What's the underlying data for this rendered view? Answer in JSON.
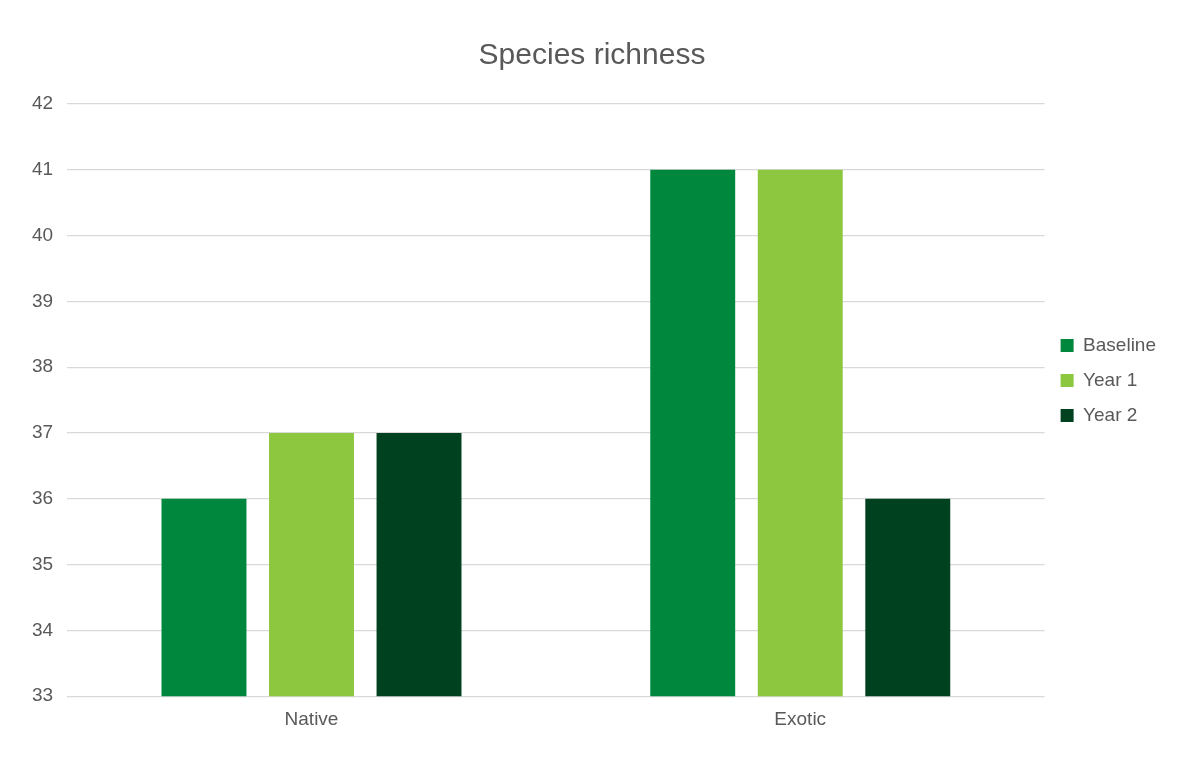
{
  "chart_data": {
    "type": "bar",
    "title": "Species richness",
    "categories": [
      "Native",
      "Exotic"
    ],
    "series": [
      {
        "name": "Baseline",
        "color": "#00873e",
        "values": [
          36,
          41
        ]
      },
      {
        "name": "Year 1",
        "color": "#8dc63f",
        "values": [
          37,
          41
        ]
      },
      {
        "name": "Year 2",
        "color": "#004120",
        "values": [
          37,
          36
        ]
      }
    ],
    "ylim": [
      33,
      42
    ],
    "yticks": [
      33,
      34,
      35,
      36,
      37,
      38,
      39,
      40,
      41,
      42
    ],
    "grid": "y",
    "legend": "right"
  }
}
